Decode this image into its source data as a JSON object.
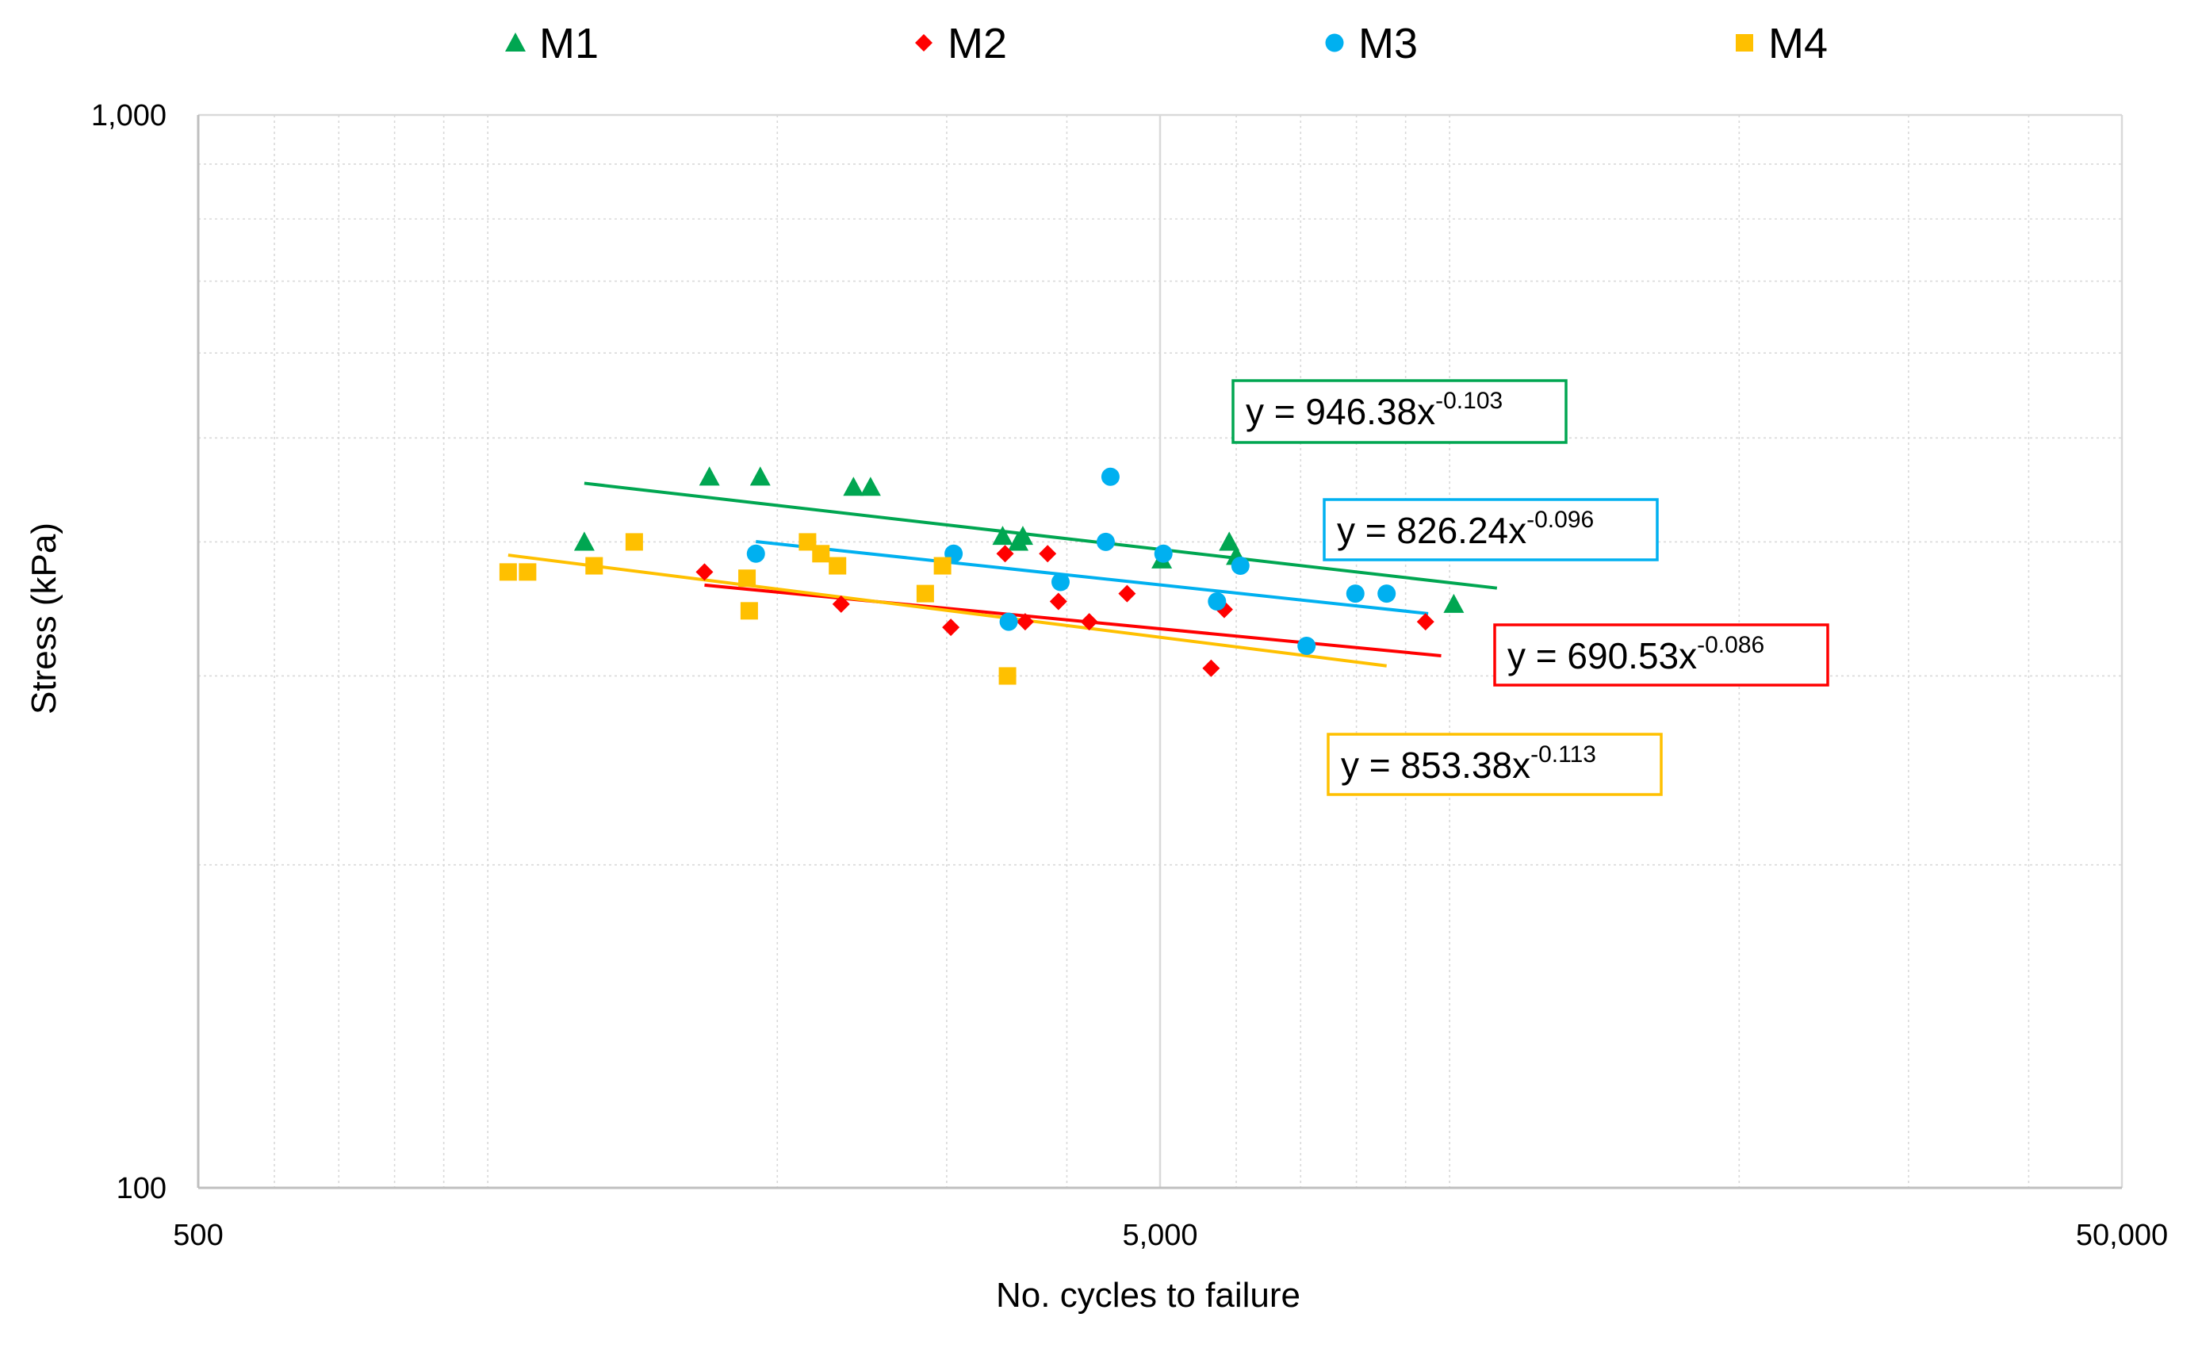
{
  "chart_data": {
    "type": "scatter",
    "title": "",
    "xlabel": "No. cycles to failure",
    "ylabel": "Stress (kPa)",
    "x_scale": "log",
    "y_scale": "log",
    "xlim": [
      500,
      50000
    ],
    "ylim": [
      100,
      1000
    ],
    "x_ticks": [
      {
        "value": 500,
        "label": "500"
      },
      {
        "value": 5000,
        "label": "5,000"
      },
      {
        "value": 50000,
        "label": "50,000"
      }
    ],
    "y_ticks": [
      {
        "value": 100,
        "label": "100"
      },
      {
        "value": 1000,
        "label": "1,000"
      }
    ],
    "grid": true,
    "legend_position": "top",
    "series": [
      {
        "name": "M1",
        "marker": "triangle",
        "color": "#00A651",
        "points": [
          [
            1260,
            400
          ],
          [
            1700,
            460
          ],
          [
            1920,
            460
          ],
          [
            2400,
            450
          ],
          [
            2500,
            450
          ],
          [
            3430,
            405
          ],
          [
            3600,
            405
          ],
          [
            3560,
            400
          ],
          [
            5020,
            385
          ],
          [
            5900,
            400
          ],
          [
            6000,
            388
          ],
          [
            10100,
            350
          ]
        ],
        "trendline": {
          "label": "y = 946.38x",
          "exp_label": "-0.103",
          "a": 946.38,
          "b": -0.103,
          "x_range": [
            1260,
            11200
          ]
        }
      },
      {
        "name": "M2",
        "marker": "diamond",
        "color": "#FF0000",
        "points": [
          [
            1680,
            375
          ],
          [
            2330,
            350
          ],
          [
            3030,
            333
          ],
          [
            3450,
            390
          ],
          [
            3620,
            337
          ],
          [
            3820,
            390
          ],
          [
            3920,
            352
          ],
          [
            4220,
            337
          ],
          [
            4620,
            358
          ],
          [
            5650,
            305
          ],
          [
            5830,
            346
          ],
          [
            9440,
            337
          ]
        ],
        "trendline": {
          "label": "y = 690.53x",
          "exp_label": "-0.086",
          "a": 690.53,
          "b": -0.086,
          "x_range": [
            1680,
            9800
          ]
        }
      },
      {
        "name": "M3",
        "marker": "circle",
        "color": "#00B0F0",
        "points": [
          [
            1900,
            390
          ],
          [
            3050,
            390
          ],
          [
            3480,
            337
          ],
          [
            3940,
            367
          ],
          [
            4390,
            400
          ],
          [
            4440,
            460
          ],
          [
            5040,
            390
          ],
          [
            5730,
            352
          ],
          [
            6060,
            380
          ],
          [
            7100,
            320
          ],
          [
            7980,
            358
          ],
          [
            8600,
            358
          ]
        ],
        "trendline": {
          "label": "y = 826.24x",
          "exp_label": "-0.096",
          "a": 826.24,
          "b": -0.096,
          "x_range": [
            1900,
            9500
          ]
        }
      },
      {
        "name": "M4",
        "marker": "square",
        "color": "#FFC000",
        "points": [
          [
            1050,
            375
          ],
          [
            1100,
            375
          ],
          [
            1290,
            380
          ],
          [
            1420,
            400
          ],
          [
            1860,
            370
          ],
          [
            1870,
            345
          ],
          [
            2150,
            400
          ],
          [
            2220,
            390
          ],
          [
            2310,
            380
          ],
          [
            2850,
            358
          ],
          [
            2970,
            380
          ],
          [
            3470,
            300
          ]
        ],
        "trendline": {
          "label": "y = 853.38x",
          "exp_label": "-0.113",
          "a": 853.38,
          "b": -0.113,
          "x_range": [
            1050,
            8600
          ]
        }
      }
    ]
  },
  "colors": {
    "grid": "#D9D9D9",
    "axis": "#BFBFBF"
  }
}
